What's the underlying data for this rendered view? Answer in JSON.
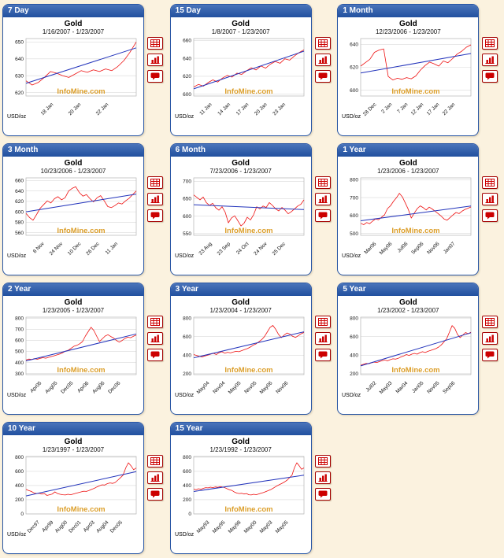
{
  "page": {
    "commodity": "Gold",
    "watermark": "InfoMine.com",
    "unit_label": "USD/oz",
    "background": "#FBF2DF"
  },
  "colors": {
    "panel_header": "#2a57a5",
    "panel_border": "#2a57a5",
    "price_line": "#ee1111",
    "trend_line": "#2233bb",
    "watermark": "#dc9f2b",
    "grid": "#d9d9d9",
    "plot_border": "#b5b5b5",
    "icon_red": "#cc0000"
  },
  "actions": {
    "table_view": "table-view-button",
    "bar_chart_view": "bar-chart-view-button",
    "comment": "comment-button"
  },
  "chart_data": [
    {
      "type": "line",
      "panel_label": "7 Day",
      "title": "Gold",
      "date_range": "1/16/2007 - 1/23/2007",
      "ylabel": "USD/oz",
      "ylim": [
        618,
        652
      ],
      "yticks": [
        620,
        630,
        640,
        650
      ],
      "xticklabels": [
        "18 Jan",
        "20 Jan",
        "22 Jan"
      ],
      "watermark": "InfoMine.com",
      "series": [
        {
          "name": "gold price",
          "color": "#ee1111",
          "values": [
            627,
            624.5,
            626,
            629,
            632.5,
            631.5,
            630,
            629,
            631,
            633,
            632,
            633.5,
            632.5,
            634,
            633,
            635.5,
            639,
            644,
            650
          ]
        },
        {
          "name": "trend",
          "color": "#2233bb",
          "values": [
            625.5,
            646.5
          ]
        }
      ]
    },
    {
      "type": "line",
      "panel_label": "15 Day",
      "title": "Gold",
      "date_range": "1/8/2007 - 1/23/2007",
      "ylabel": "USD/oz",
      "ylim": [
        598,
        662
      ],
      "yticks": [
        600,
        620,
        640,
        660
      ],
      "xticklabels": [
        "11 Jan",
        "14 Jan",
        "17 Jan",
        "20 Jan",
        "23 Jan"
      ],
      "watermark": "InfoMine.com",
      "series": [
        {
          "name": "gold price",
          "color": "#ee1111",
          "values": [
            608,
            611,
            609,
            613,
            616,
            613.5,
            618,
            621,
            619,
            623.5,
            622,
            626,
            629.5,
            627,
            631.5,
            629,
            633.5,
            636.5,
            634.5,
            639.5,
            638,
            642.5,
            646.5,
            649.5
          ]
        },
        {
          "name": "trend",
          "color": "#2233bb",
          "values": [
            606,
            648
          ]
        }
      ]
    },
    {
      "type": "line",
      "panel_label": "1 Month",
      "title": "Gold",
      "date_range": "12/23/2006 - 1/23/2007",
      "ylabel": "USD/oz",
      "ylim": [
        595,
        645
      ],
      "yticks": [
        600,
        620,
        640
      ],
      "xticklabels": [
        "28 Dec",
        "2 Jan",
        "7 Jan",
        "12 Jan",
        "17 Jan",
        "22 Jan"
      ],
      "watermark": "InfoMine.com",
      "series": [
        {
          "name": "gold price",
          "color": "#ee1111",
          "values": [
            621,
            624,
            627,
            633,
            635,
            636,
            612,
            609,
            610.5,
            609.5,
            611,
            610,
            612.5,
            617.5,
            621.5,
            624.5,
            623,
            621,
            625.5,
            624,
            627.5,
            631.5,
            634,
            637.5,
            639.5
          ]
        },
        {
          "name": "trend",
          "color": "#2233bb",
          "values": [
            615,
            632
          ]
        }
      ]
    },
    {
      "type": "line",
      "panel_label": "3 Month",
      "title": "Gold",
      "date_range": "10/23/2006 - 1/23/2007",
      "ylabel": "USD/oz",
      "ylim": [
        555,
        665
      ],
      "yticks": [
        560,
        580,
        600,
        620,
        640,
        660
      ],
      "xticklabels": [
        "8 Nov",
        "24 Nov",
        "10 Dec",
        "26 Dec",
        "11 Jan"
      ],
      "watermark": "InfoMine.com",
      "series": [
        {
          "name": "gold price",
          "color": "#ee1111",
          "values": [
            597,
            589,
            584,
            595,
            607,
            614,
            621,
            617,
            625,
            629,
            623,
            627,
            640,
            645,
            648,
            637,
            630,
            633,
            625,
            619,
            627,
            631,
            621,
            610,
            608,
            612,
            617,
            615,
            621,
            626,
            633,
            640
          ]
        },
        {
          "name": "trend",
          "color": "#2233bb",
          "values": [
            600,
            634
          ]
        }
      ]
    },
    {
      "type": "line",
      "panel_label": "6 Month",
      "title": "Gold",
      "date_range": "7/23/2006 - 1/23/2007",
      "ylabel": "USD/oz",
      "ylim": [
        545,
        710
      ],
      "yticks": [
        550,
        600,
        650,
        700
      ],
      "xticklabels": [
        "23 Aug",
        "23 Sep",
        "24 Oct",
        "24 Nov",
        "25 Dec"
      ],
      "watermark": "InfoMine.com",
      "series": [
        {
          "name": "gold price",
          "color": "#ee1111",
          "values": [
            661,
            654,
            647,
            655,
            639,
            631,
            637,
            624,
            617,
            627,
            611,
            581,
            595,
            601,
            587,
            572,
            580,
            597,
            589,
            604,
            627,
            621,
            629,
            625,
            639,
            631,
            621,
            615,
            625,
            617,
            607,
            613,
            621,
            629,
            634,
            647
          ]
        },
        {
          "name": "trend",
          "color": "#2233bb",
          "values": [
            633,
            619
          ]
        }
      ]
    },
    {
      "type": "line",
      "panel_label": "1 Year",
      "title": "Gold",
      "date_range": "1/23/2006 - 1/23/2007",
      "ylabel": "USD/oz",
      "ylim": [
        490,
        810
      ],
      "yticks": [
        500,
        600,
        700,
        800
      ],
      "xticklabels": [
        "Mar06",
        "May06",
        "Jul06",
        "Sep06",
        "Nov06",
        "Jan07"
      ],
      "watermark": "InfoMine.com",
      "series": [
        {
          "name": "gold price",
          "color": "#ee1111",
          "values": [
            557,
            549,
            561,
            555,
            569,
            581,
            577,
            591,
            604,
            639,
            654,
            679,
            699,
            724,
            704,
            669,
            634,
            586,
            614,
            639,
            654,
            644,
            631,
            647,
            637,
            624,
            611,
            597,
            581,
            574,
            589,
            604,
            617,
            611,
            624,
            634,
            641,
            648
          ]
        },
        {
          "name": "trend",
          "color": "#2233bb",
          "values": [
            571,
            653
          ]
        }
      ]
    },
    {
      "type": "line",
      "panel_label": "2 Year",
      "title": "Gold",
      "date_range": "1/23/2005 - 1/23/2007",
      "ylabel": "USD/oz",
      "ylim": [
        290,
        810
      ],
      "yticks": [
        300,
        400,
        500,
        600,
        700,
        800
      ],
      "xticklabels": [
        "Apr05",
        "Aug05",
        "Dec05",
        "Apr06",
        "Aug06",
        "Dec06"
      ],
      "watermark": "InfoMine.com",
      "series": [
        {
          "name": "gold price",
          "color": "#ee1111",
          "values": [
            424,
            431,
            427,
            435,
            429,
            437,
            443,
            439,
            447,
            454,
            461,
            469,
            477,
            489,
            504,
            511,
            529,
            547,
            555,
            569,
            589,
            639,
            679,
            719,
            689,
            639,
            589,
            614,
            639,
            651,
            635,
            621,
            599,
            584,
            599,
            617,
            629,
            624,
            637,
            648
          ]
        },
        {
          "name": "trend",
          "color": "#2233bb",
          "values": [
            414,
            658
          ]
        }
      ]
    },
    {
      "type": "line",
      "panel_label": "3 Year",
      "title": "Gold",
      "date_range": "1/23/2004 - 1/23/2007",
      "ylabel": "USD/oz",
      "ylim": [
        190,
        810
      ],
      "yticks": [
        200,
        400,
        600,
        800
      ],
      "xticklabels": [
        "May04",
        "Nov04",
        "May05",
        "Nov05",
        "May06",
        "Nov06"
      ],
      "watermark": "InfoMine.com",
      "series": [
        {
          "name": "gold price",
          "color": "#ee1111",
          "values": [
            407,
            397,
            387,
            381,
            391,
            401,
            411,
            419,
            407,
            427,
            437,
            421,
            431,
            424,
            434,
            441,
            437,
            449,
            461,
            471,
            487,
            507,
            521,
            544,
            567,
            599,
            649,
            699,
            721,
            679,
            624,
            589,
            617,
            639,
            627,
            604,
            591,
            611,
            631,
            645
          ]
        },
        {
          "name": "trend",
          "color": "#2233bb",
          "values": [
            371,
            652
          ]
        }
      ]
    },
    {
      "type": "line",
      "panel_label": "5 Year",
      "title": "Gold",
      "date_range": "1/23/2002 - 1/23/2007",
      "ylabel": "USD/oz",
      "ylim": [
        190,
        810
      ],
      "yticks": [
        200,
        400,
        600,
        800
      ],
      "xticklabels": [
        "Jul02",
        "May03",
        "Mar04",
        "Jan05",
        "Nov05",
        "Sep06"
      ],
      "watermark": "InfoMine.com",
      "series": [
        {
          "name": "gold price",
          "color": "#ee1111",
          "values": [
            291,
            301,
            311,
            307,
            317,
            325,
            321,
            331,
            341,
            347,
            339,
            351,
            361,
            357,
            367,
            381,
            391,
            407,
            397,
            411,
            419,
            411,
            427,
            437,
            429,
            441,
            451,
            461,
            471,
            487,
            511,
            544,
            579,
            649,
            719,
            689,
            624,
            589,
            619,
            644,
            631,
            648
          ]
        },
        {
          "name": "trend",
          "color": "#2233bb",
          "values": [
            284,
            642
          ]
        }
      ]
    },
    {
      "type": "line",
      "panel_label": "10 Year",
      "title": "Gold",
      "date_range": "1/23/1997 - 1/23/2007",
      "ylabel": "USD/oz",
      "ylim": [
        0,
        810
      ],
      "yticks": [
        0,
        200,
        400,
        600,
        800
      ],
      "xticklabels": [
        "Dec97",
        "Apr99",
        "Aug00",
        "Dec01",
        "Apr03",
        "Aug04",
        "Dec05"
      ],
      "watermark": "InfoMine.com",
      "series": [
        {
          "name": "gold price",
          "color": "#ee1111",
          "values": [
            347,
            331,
            317,
            297,
            287,
            291,
            281,
            287,
            261,
            271,
            281,
            311,
            287,
            277,
            271,
            267,
            277,
            271,
            281,
            291,
            301,
            311,
            321,
            317,
            331,
            347,
            361,
            381,
            397,
            411,
            407,
            427,
            437,
            431,
            444,
            477,
            511,
            547,
            649,
            721,
            679,
            624,
            648
          ]
        },
        {
          "name": "trend",
          "color": "#2233bb",
          "values": [
            254,
            596
          ]
        }
      ]
    },
    {
      "type": "line",
      "panel_label": "15 Year",
      "title": "Gold",
      "date_range": "1/23/1992 - 1/23/2007",
      "ylabel": "USD/oz",
      "ylim": [
        0,
        810
      ],
      "yticks": [
        0,
        200,
        400,
        600,
        800
      ],
      "xticklabels": [
        "May93",
        "May95",
        "May98",
        "May00",
        "May03",
        "May05"
      ],
      "watermark": "InfoMine.com",
      "series": [
        {
          "name": "gold price",
          "color": "#ee1111",
          "values": [
            351,
            341,
            355,
            347,
            361,
            371,
            367,
            377,
            371,
            381,
            375,
            385,
            379,
            369,
            354,
            339,
            329,
            309,
            294,
            287,
            291,
            281,
            287,
            271,
            267,
            277,
            271,
            281,
            291,
            301,
            314,
            327,
            341,
            359,
            381,
            401,
            417,
            434,
            454,
            477,
            511,
            547,
            649,
            721,
            679,
            629,
            649
          ]
        },
        {
          "name": "trend",
          "color": "#2233bb",
          "values": [
            316,
            546
          ]
        }
      ]
    }
  ]
}
